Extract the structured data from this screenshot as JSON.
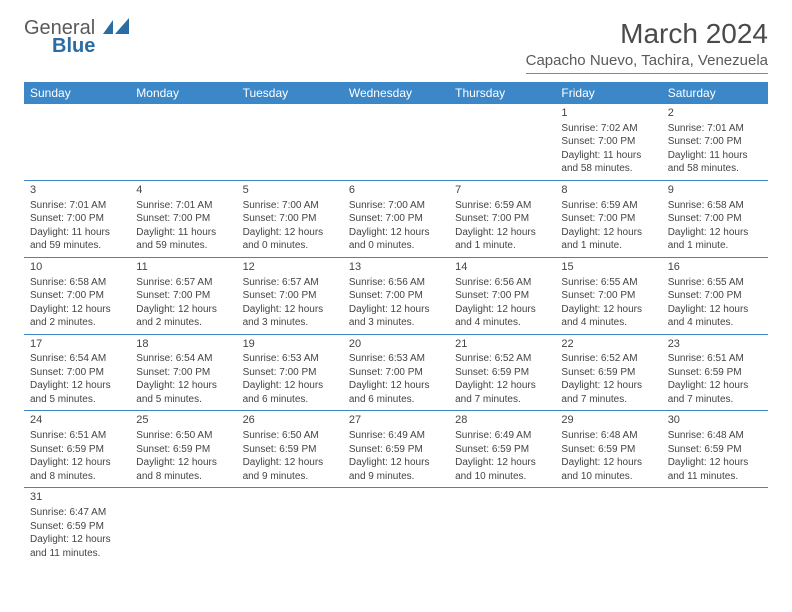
{
  "logo": {
    "name": "General",
    "sub": "Blue"
  },
  "title": "March 2024",
  "location": "Capacho Nuevo, Tachira, Venezuela",
  "colors": {
    "header_bg": "#3b87c8",
    "header_text": "#ffffff",
    "text": "#444444",
    "border": "#3b87c8"
  },
  "weekdays": [
    "Sunday",
    "Monday",
    "Tuesday",
    "Wednesday",
    "Thursday",
    "Friday",
    "Saturday"
  ],
  "weeks": [
    [
      null,
      null,
      null,
      null,
      null,
      {
        "d": "1",
        "sr": "Sunrise: 7:02 AM",
        "ss": "Sunset: 7:00 PM",
        "dl1": "Daylight: 11 hours",
        "dl2": "and 58 minutes."
      },
      {
        "d": "2",
        "sr": "Sunrise: 7:01 AM",
        "ss": "Sunset: 7:00 PM",
        "dl1": "Daylight: 11 hours",
        "dl2": "and 58 minutes."
      }
    ],
    [
      {
        "d": "3",
        "sr": "Sunrise: 7:01 AM",
        "ss": "Sunset: 7:00 PM",
        "dl1": "Daylight: 11 hours",
        "dl2": "and 59 minutes."
      },
      {
        "d": "4",
        "sr": "Sunrise: 7:01 AM",
        "ss": "Sunset: 7:00 PM",
        "dl1": "Daylight: 11 hours",
        "dl2": "and 59 minutes."
      },
      {
        "d": "5",
        "sr": "Sunrise: 7:00 AM",
        "ss": "Sunset: 7:00 PM",
        "dl1": "Daylight: 12 hours",
        "dl2": "and 0 minutes."
      },
      {
        "d": "6",
        "sr": "Sunrise: 7:00 AM",
        "ss": "Sunset: 7:00 PM",
        "dl1": "Daylight: 12 hours",
        "dl2": "and 0 minutes."
      },
      {
        "d": "7",
        "sr": "Sunrise: 6:59 AM",
        "ss": "Sunset: 7:00 PM",
        "dl1": "Daylight: 12 hours",
        "dl2": "and 1 minute."
      },
      {
        "d": "8",
        "sr": "Sunrise: 6:59 AM",
        "ss": "Sunset: 7:00 PM",
        "dl1": "Daylight: 12 hours",
        "dl2": "and 1 minute."
      },
      {
        "d": "9",
        "sr": "Sunrise: 6:58 AM",
        "ss": "Sunset: 7:00 PM",
        "dl1": "Daylight: 12 hours",
        "dl2": "and 1 minute."
      }
    ],
    [
      {
        "d": "10",
        "sr": "Sunrise: 6:58 AM",
        "ss": "Sunset: 7:00 PM",
        "dl1": "Daylight: 12 hours",
        "dl2": "and 2 minutes."
      },
      {
        "d": "11",
        "sr": "Sunrise: 6:57 AM",
        "ss": "Sunset: 7:00 PM",
        "dl1": "Daylight: 12 hours",
        "dl2": "and 2 minutes."
      },
      {
        "d": "12",
        "sr": "Sunrise: 6:57 AM",
        "ss": "Sunset: 7:00 PM",
        "dl1": "Daylight: 12 hours",
        "dl2": "and 3 minutes."
      },
      {
        "d": "13",
        "sr": "Sunrise: 6:56 AM",
        "ss": "Sunset: 7:00 PM",
        "dl1": "Daylight: 12 hours",
        "dl2": "and 3 minutes."
      },
      {
        "d": "14",
        "sr": "Sunrise: 6:56 AM",
        "ss": "Sunset: 7:00 PM",
        "dl1": "Daylight: 12 hours",
        "dl2": "and 4 minutes."
      },
      {
        "d": "15",
        "sr": "Sunrise: 6:55 AM",
        "ss": "Sunset: 7:00 PM",
        "dl1": "Daylight: 12 hours",
        "dl2": "and 4 minutes."
      },
      {
        "d": "16",
        "sr": "Sunrise: 6:55 AM",
        "ss": "Sunset: 7:00 PM",
        "dl1": "Daylight: 12 hours",
        "dl2": "and 4 minutes."
      }
    ],
    [
      {
        "d": "17",
        "sr": "Sunrise: 6:54 AM",
        "ss": "Sunset: 7:00 PM",
        "dl1": "Daylight: 12 hours",
        "dl2": "and 5 minutes."
      },
      {
        "d": "18",
        "sr": "Sunrise: 6:54 AM",
        "ss": "Sunset: 7:00 PM",
        "dl1": "Daylight: 12 hours",
        "dl2": "and 5 minutes."
      },
      {
        "d": "19",
        "sr": "Sunrise: 6:53 AM",
        "ss": "Sunset: 7:00 PM",
        "dl1": "Daylight: 12 hours",
        "dl2": "and 6 minutes."
      },
      {
        "d": "20",
        "sr": "Sunrise: 6:53 AM",
        "ss": "Sunset: 7:00 PM",
        "dl1": "Daylight: 12 hours",
        "dl2": "and 6 minutes."
      },
      {
        "d": "21",
        "sr": "Sunrise: 6:52 AM",
        "ss": "Sunset: 6:59 PM",
        "dl1": "Daylight: 12 hours",
        "dl2": "and 7 minutes."
      },
      {
        "d": "22",
        "sr": "Sunrise: 6:52 AM",
        "ss": "Sunset: 6:59 PM",
        "dl1": "Daylight: 12 hours",
        "dl2": "and 7 minutes."
      },
      {
        "d": "23",
        "sr": "Sunrise: 6:51 AM",
        "ss": "Sunset: 6:59 PM",
        "dl1": "Daylight: 12 hours",
        "dl2": "and 7 minutes."
      }
    ],
    [
      {
        "d": "24",
        "sr": "Sunrise: 6:51 AM",
        "ss": "Sunset: 6:59 PM",
        "dl1": "Daylight: 12 hours",
        "dl2": "and 8 minutes."
      },
      {
        "d": "25",
        "sr": "Sunrise: 6:50 AM",
        "ss": "Sunset: 6:59 PM",
        "dl1": "Daylight: 12 hours",
        "dl2": "and 8 minutes."
      },
      {
        "d": "26",
        "sr": "Sunrise: 6:50 AM",
        "ss": "Sunset: 6:59 PM",
        "dl1": "Daylight: 12 hours",
        "dl2": "and 9 minutes."
      },
      {
        "d": "27",
        "sr": "Sunrise: 6:49 AM",
        "ss": "Sunset: 6:59 PM",
        "dl1": "Daylight: 12 hours",
        "dl2": "and 9 minutes."
      },
      {
        "d": "28",
        "sr": "Sunrise: 6:49 AM",
        "ss": "Sunset: 6:59 PM",
        "dl1": "Daylight: 12 hours",
        "dl2": "and 10 minutes."
      },
      {
        "d": "29",
        "sr": "Sunrise: 6:48 AM",
        "ss": "Sunset: 6:59 PM",
        "dl1": "Daylight: 12 hours",
        "dl2": "and 10 minutes."
      },
      {
        "d": "30",
        "sr": "Sunrise: 6:48 AM",
        "ss": "Sunset: 6:59 PM",
        "dl1": "Daylight: 12 hours",
        "dl2": "and 11 minutes."
      }
    ],
    [
      {
        "d": "31",
        "sr": "Sunrise: 6:47 AM",
        "ss": "Sunset: 6:59 PM",
        "dl1": "Daylight: 12 hours",
        "dl2": "and 11 minutes."
      },
      null,
      null,
      null,
      null,
      null,
      null
    ]
  ]
}
